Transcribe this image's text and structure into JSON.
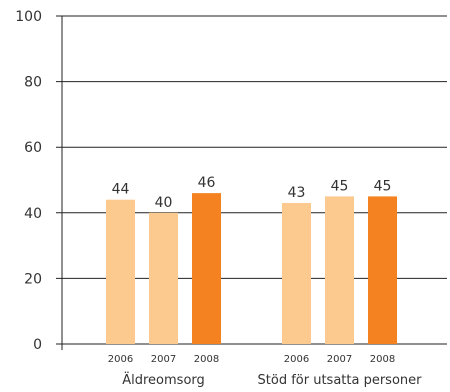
{
  "chart_data": {
    "type": "bar",
    "title": "",
    "xlabel": "",
    "ylabel": "",
    "ylim": [
      0,
      100
    ],
    "yticks": [
      0,
      20,
      40,
      60,
      80,
      100
    ],
    "grid": true,
    "groups": [
      {
        "label": "Äldreomsorg",
        "bars": [
          {
            "year": "2006",
            "value": 44,
            "label": "44",
            "color": "#fcc98f"
          },
          {
            "year": "2007",
            "value": 40,
            "label": "40",
            "color": "#fcc98f"
          },
          {
            "year": "2008",
            "value": 46,
            "label": "46",
            "color": "#f58220"
          }
        ]
      },
      {
        "label": "Stöd för utsatta personer",
        "bars": [
          {
            "year": "2006",
            "value": 43,
            "label": "43",
            "color": "#fcc98f"
          },
          {
            "year": "2007",
            "value": 45,
            "label": "45",
            "color": "#fcc98f"
          },
          {
            "year": "2008",
            "value": 45,
            "label": "45",
            "color": "#f58220"
          }
        ]
      }
    ],
    "colors": {
      "light": "#fcc98f",
      "highlight": "#f58220",
      "grid": "#222222",
      "text": "#333333"
    }
  }
}
